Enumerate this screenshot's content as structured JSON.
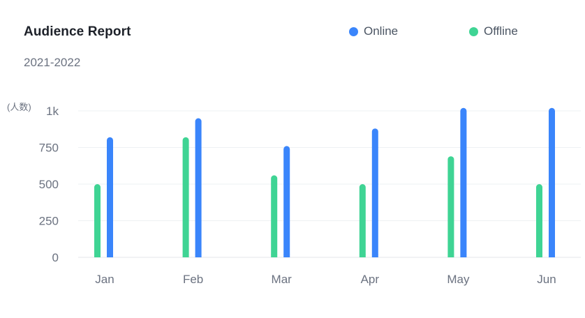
{
  "chart_data": {
    "type": "bar",
    "title": "Audience Report",
    "subtitle": "2021-2022",
    "unit_label": "(人数)",
    "categories": [
      "Jan",
      "Feb",
      "Mar",
      "Apr",
      "May",
      "Jun"
    ],
    "series": [
      {
        "name": "Offline",
        "color": "#3fd494",
        "values": [
          500,
          820,
          560,
          500,
          690,
          500
        ]
      },
      {
        "name": "Online",
        "color": "#3a85fb",
        "values": [
          820,
          950,
          760,
          880,
          1020,
          1020
        ]
      }
    ],
    "ylim": [
      0,
      1000
    ],
    "yticks": [
      0,
      250,
      500,
      750,
      1000
    ],
    "ytick_labels": [
      "0",
      "250",
      "500",
      "750",
      "1k"
    ],
    "legend_position": "top-right",
    "grid": true
  }
}
